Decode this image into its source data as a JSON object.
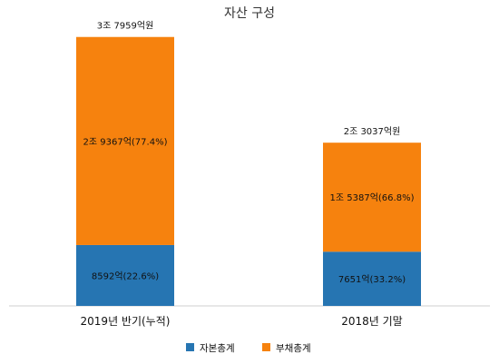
{
  "chart_data": {
    "type": "bar",
    "stacked": true,
    "title": "자산 구성",
    "unit": "억원",
    "categories": [
      "2019년 반기(누적)",
      "2018년 기말"
    ],
    "series": [
      {
        "name": "자본총계",
        "color": "#2675b2",
        "values": [
          8592,
          7651
        ],
        "labels": [
          "8592억(22.6%)",
          "7651억(33.2%)"
        ]
      },
      {
        "name": "부채총계",
        "color": "#f6820e",
        "values": [
          29367,
          15387
        ],
        "labels": [
          "2조 9367억(77.4%)",
          "1조 5387억(66.8%)"
        ]
      }
    ],
    "totals": [
      37959,
      23037
    ],
    "total_labels": [
      "3조 7959억원",
      "2조 3037억원"
    ],
    "ylim": [
      0,
      41000
    ],
    "legend_position": "bottom",
    "grid": false
  }
}
